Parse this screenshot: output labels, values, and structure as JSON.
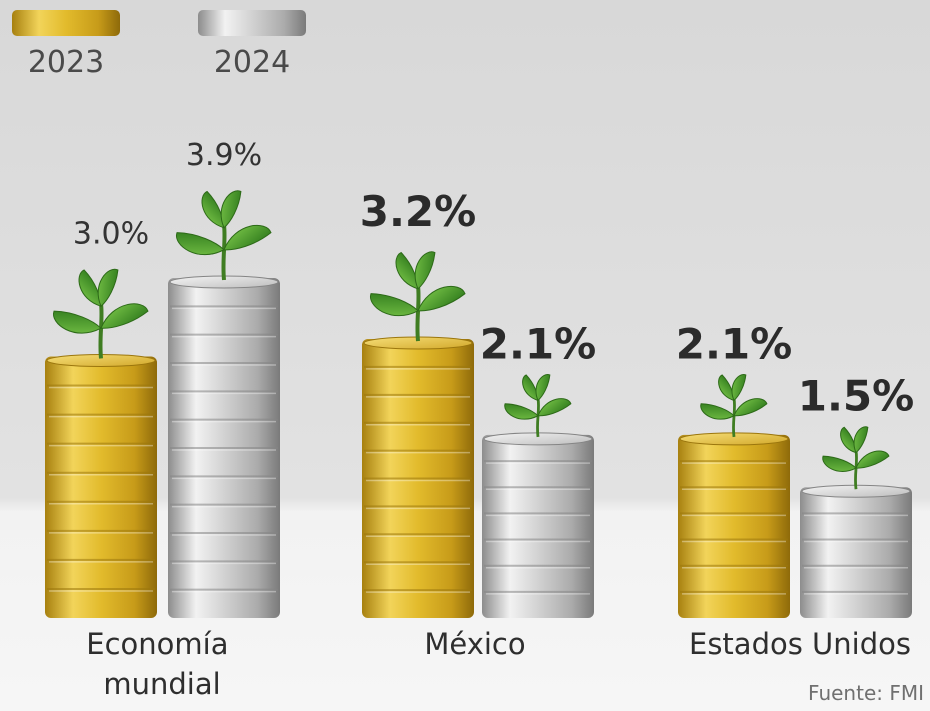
{
  "colors": {
    "gold": "#d9b024",
    "silver": "#c9c9c9",
    "leaf": "#4c9a2a",
    "background": "#e6e6e6"
  },
  "chart_data": {
    "type": "bar",
    "categories": [
      "Economía mundial",
      "México",
      "Estados Unidos"
    ],
    "series": [
      {
        "name": "2023",
        "values": [
          3.0,
          3.2,
          2.1
        ],
        "labels": [
          "3.0%",
          "3.2%",
          "2.1%"
        ],
        "color": "#d9b024"
      },
      {
        "name": "2024",
        "values": [
          3.9,
          2.1,
          1.5
        ],
        "labels": [
          "3.9%",
          "2.1%",
          "1.5%"
        ],
        "color": "#c9c9c9"
      }
    ],
    "unit": "%",
    "legend": "top-left",
    "grid": false,
    "source": "Fuente: FMI"
  }
}
